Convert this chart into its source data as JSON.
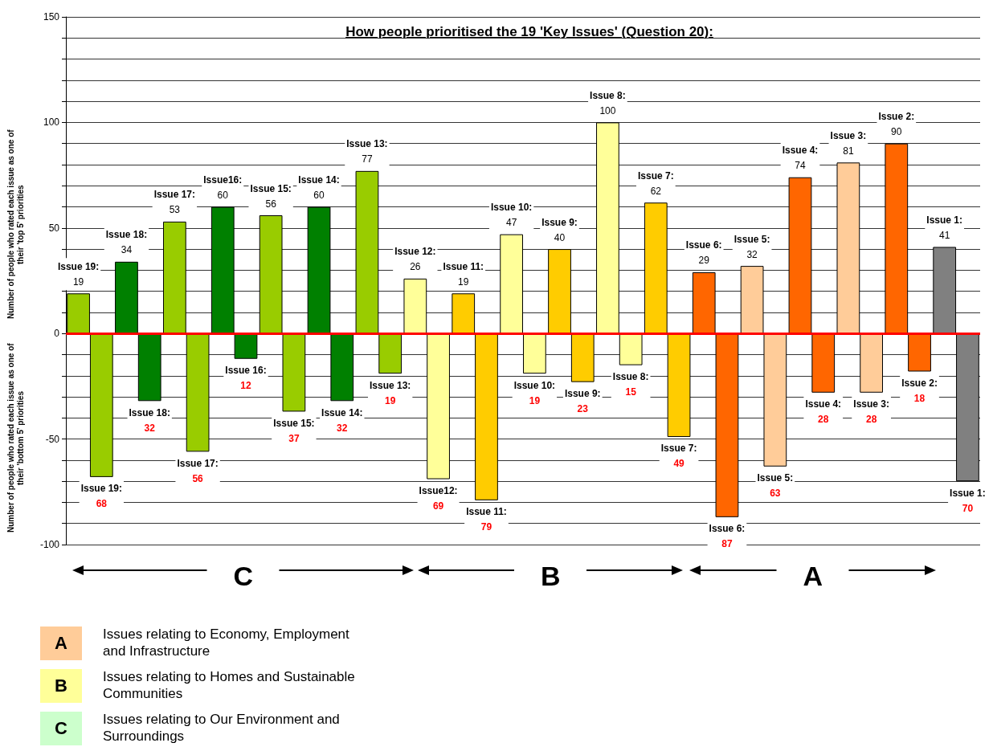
{
  "chart_data": {
    "type": "bar",
    "title": "How people prioritised the 19 'Key Issues' (Question 20):",
    "ylabel": "Number of people who rated each issue as one of their 'top 5' priorities",
    "categories": [
      null,
      null,
      null,
      null,
      null,
      null,
      null,
      null,
      null,
      null,
      null,
      null,
      null,
      null,
      null,
      null,
      null,
      null,
      null
    ],
    "series": [
      {
        "values": [
          19,
          34,
          53,
          60,
          56,
          60,
          77,
          26,
          19,
          47,
          40,
          100,
          62,
          29,
          32,
          74,
          81,
          90,
          41
        ],
        "colors": [
          "#99cc00",
          "#008000",
          "#99cc00",
          "#008000",
          "#99cc00",
          "#008000",
          "#99cc00",
          "#ffff99",
          "#ffcc00",
          "#ffff99",
          "#ffcc00",
          "#ffff99",
          "#ffcc00",
          "#ff6600",
          "#ffcc99",
          "#ff6600",
          "#ffcc99",
          "#ff6600",
          "#808080"
        ],
        "value_labels": [
          "Issue 19:\n19",
          "Issue 18:\n34",
          "Issue 17:\n53",
          "Issue16:\n60",
          "Issue 15:\n56",
          "Issue 14:\n60",
          "Issue 13:\n77",
          "Issue 12:\n26",
          "Issue 11:\n19",
          "Issue 10:\n47",
          "Issue 9:\n40",
          "Issue 8:\n100",
          "Issue 7:\n62",
          "Issue 6:\n29",
          "Issue 5:\n32",
          "Issue 4:\n74",
          "Issue 3:\n81",
          "Issue 2:\n90",
          "Issue 1:\n41"
        ]
      },
      {
        "values": [
          -68,
          -32,
          -56,
          -12,
          -37,
          -32,
          -19,
          -69,
          -79,
          -19,
          -23,
          -15,
          -49,
          -87,
          -63,
          -28,
          -28,
          -18,
          -70
        ],
        "colors": [
          "#99cc00",
          "#008000",
          "#99cc00",
          "#008000",
          "#99cc00",
          "#008000",
          "#99cc00",
          "#ffff99",
          "#ffcc00",
          "#ffff99",
          "#ffcc00",
          "#ffff99",
          "#ffcc00",
          "#ff6600",
          "#ffcc99",
          "#ff6600",
          "#ffcc99",
          "#ff6600",
          "#808080"
        ],
        "value_labels": [
          "Issue 19:\n68",
          "Issue 18:\n32",
          "Issue 17:\n56",
          "Issue 16:\n12",
          "Issue 15:\n37",
          "Issue 14:\n32",
          "Issue 13:\n19",
          "Issue12:\n69",
          "Issue 11:\n79",
          "Issue 10:\n19",
          "Issue 9:\n23",
          "Issue 8:\n15",
          "Issue 7:\n49",
          "Issue 6:\n87",
          "Issue 5:\n63",
          "Issue 4:\n28",
          "Issue 3:\n28",
          "Issue 2:\n18",
          "Issue 1:\n70"
        ]
      }
    ],
    "ylim": [
      -100,
      150
    ],
    "yticks": [
      -100,
      {
        "value": -90,
        "label": null
      },
      {
        "value": -80,
        "label": null
      },
      {
        "value": -70,
        "label": null
      },
      {
        "value": -60,
        "label": null
      },
      -50,
      {
        "value": -40,
        "label": null
      },
      {
        "value": -30,
        "label": null
      },
      {
        "value": -20,
        "label": null
      },
      {
        "value": -10,
        "label": null
      },
      0,
      {
        "value": 10,
        "label": null
      },
      {
        "value": 20,
        "label": null
      },
      {
        "value": 30,
        "label": null
      },
      {
        "value": 40,
        "label": null
      },
      50,
      {
        "value": 60,
        "label": null
      },
      {
        "value": 70,
        "label": null
      },
      {
        "value": 80,
        "label": null
      },
      {
        "value": 90,
        "label": null
      },
      100,
      {
        "value": 110,
        "label": null
      },
      {
        "value": 120,
        "label": null
      },
      {
        "value": 130,
        "label": null
      },
      {
        "value": 140,
        "label": null
      },
      150
    ],
    "grid": "y",
    "tick_labels": "y",
    "ref_lines": [
      {
        "axis": "y",
        "value": 0,
        "color": "#ff0000"
      }
    ],
    "annotations": [
      "Number of people who rated each issue as one of their 'bottom 5' priorities",
      "C",
      "B",
      "A",
      "A",
      "Issues relating to Economy, Employment and Infrastructure",
      "B",
      "Issues relating to Homes and Sustainable Communities",
      "C",
      "Issues relating to Our Environment and Surroundings"
    ]
  }
}
